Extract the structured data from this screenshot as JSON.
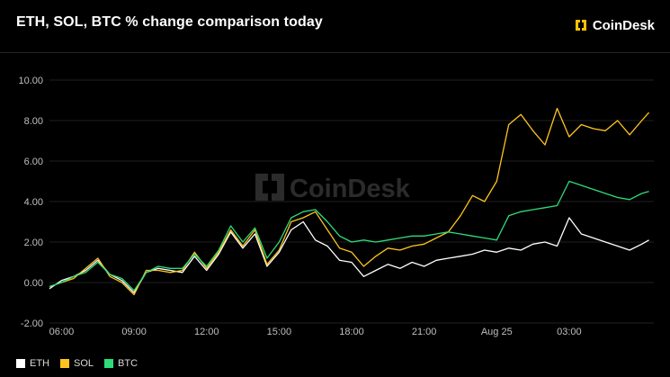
{
  "header": {
    "title": "ETH, SOL, BTC % change comparison today",
    "logo_text": "CoinDesk"
  },
  "watermark": {
    "text": "CoinDesk"
  },
  "colors": {
    "background": "#000000",
    "grid": "#1f1f1f",
    "axis_text": "#bfbfbf",
    "logo_accent": "#ffc300"
  },
  "chart_data": {
    "type": "line",
    "title": "ETH, SOL, BTC % change comparison today",
    "xlabel": "",
    "ylabel": "",
    "ylim": [
      -2,
      10
    ],
    "xlim": [
      5.5,
      30.5
    ],
    "grid": true,
    "legend_position": "bottom-left",
    "yticks": [
      -2,
      0,
      2,
      4,
      6,
      8,
      10
    ],
    "ytick_labels": [
      "-2.00",
      "0.00",
      "2.00",
      "4.00",
      "6.00",
      "8.00",
      "10.00"
    ],
    "xticks": [
      6,
      9,
      12,
      15,
      18,
      21,
      24,
      27
    ],
    "xtick_labels": [
      "06:00",
      "09:00",
      "12:00",
      "15:00",
      "18:00",
      "21:00",
      "Aug 25",
      "03:00"
    ],
    "series": [
      {
        "name": "ETH",
        "color": "#ffffff",
        "x": [
          5.5,
          6.0,
          6.5,
          7.0,
          7.5,
          8.0,
          8.5,
          9.0,
          9.5,
          10.0,
          10.5,
          11.0,
          11.5,
          12.0,
          12.5,
          13.0,
          13.5,
          14.0,
          14.5,
          15.0,
          15.5,
          16.0,
          16.5,
          17.0,
          17.5,
          18.0,
          18.5,
          19.0,
          19.5,
          20.0,
          20.5,
          21.0,
          21.5,
          22.0,
          22.5,
          23.0,
          23.5,
          24.0,
          24.5,
          25.0,
          25.5,
          26.0,
          26.5,
          27.0,
          27.5,
          28.0,
          28.5,
          29.0,
          29.5,
          30.0,
          30.3
        ],
        "values": [
          -0.3,
          0.1,
          0.3,
          0.6,
          1.1,
          0.4,
          0.1,
          -0.5,
          0.5,
          0.7,
          0.6,
          0.5,
          1.3,
          0.6,
          1.4,
          2.5,
          1.7,
          2.4,
          0.8,
          1.5,
          2.6,
          3.0,
          2.1,
          1.8,
          1.1,
          1.0,
          0.3,
          0.6,
          0.9,
          0.7,
          1.0,
          0.8,
          1.1,
          1.2,
          1.3,
          1.4,
          1.6,
          1.5,
          1.7,
          1.6,
          1.9,
          2.0,
          1.8,
          3.2,
          2.4,
          2.2,
          2.0,
          1.8,
          1.6,
          1.9,
          2.1
        ]
      },
      {
        "name": "SOL",
        "color": "#ffc41f",
        "x": [
          5.5,
          6.0,
          6.5,
          7.0,
          7.5,
          8.0,
          8.5,
          9.0,
          9.5,
          10.0,
          10.5,
          11.0,
          11.5,
          12.0,
          12.5,
          13.0,
          13.5,
          14.0,
          14.5,
          15.0,
          15.5,
          16.0,
          16.5,
          17.0,
          17.5,
          18.0,
          18.5,
          19.0,
          19.5,
          20.0,
          20.5,
          21.0,
          21.5,
          22.0,
          22.5,
          23.0,
          23.5,
          24.0,
          24.5,
          25.0,
          25.5,
          26.0,
          26.5,
          27.0,
          27.5,
          28.0,
          28.5,
          29.0,
          29.5,
          30.0,
          30.3
        ],
        "values": [
          -0.2,
          0.0,
          0.2,
          0.7,
          1.2,
          0.3,
          0.0,
          -0.6,
          0.6,
          0.6,
          0.5,
          0.6,
          1.5,
          0.7,
          1.5,
          2.6,
          1.8,
          2.6,
          0.9,
          1.6,
          3.0,
          3.2,
          3.5,
          2.6,
          1.7,
          1.5,
          0.8,
          1.3,
          1.7,
          1.6,
          1.8,
          1.9,
          2.2,
          2.5,
          3.3,
          4.3,
          4.0,
          5.0,
          7.8,
          8.3,
          7.5,
          6.8,
          8.6,
          7.2,
          7.8,
          7.6,
          7.5,
          8.0,
          7.3,
          8.0,
          8.4
        ]
      },
      {
        "name": "BTC",
        "color": "#2edc7a",
        "x": [
          5.5,
          6.0,
          6.5,
          7.0,
          7.5,
          8.0,
          8.5,
          9.0,
          9.5,
          10.0,
          10.5,
          11.0,
          11.5,
          12.0,
          12.5,
          13.0,
          13.5,
          14.0,
          14.5,
          15.0,
          15.5,
          16.0,
          16.5,
          17.0,
          17.5,
          18.0,
          18.5,
          19.0,
          19.5,
          20.0,
          20.5,
          21.0,
          21.5,
          22.0,
          22.5,
          23.0,
          23.5,
          24.0,
          24.5,
          25.0,
          25.5,
          26.0,
          26.5,
          27.0,
          27.5,
          28.0,
          28.5,
          29.0,
          29.5,
          30.0,
          30.3
        ],
        "values": [
          -0.2,
          0.0,
          0.3,
          0.5,
          1.0,
          0.4,
          0.2,
          -0.4,
          0.5,
          0.8,
          0.7,
          0.7,
          1.4,
          0.8,
          1.6,
          2.8,
          2.0,
          2.7,
          1.2,
          2.0,
          3.2,
          3.5,
          3.6,
          3.0,
          2.3,
          2.0,
          2.1,
          2.0,
          2.1,
          2.2,
          2.3,
          2.3,
          2.4,
          2.5,
          2.4,
          2.3,
          2.2,
          2.1,
          3.3,
          3.5,
          3.6,
          3.7,
          3.8,
          5.0,
          4.8,
          4.6,
          4.4,
          4.2,
          4.1,
          4.4,
          4.5
        ]
      }
    ]
  }
}
